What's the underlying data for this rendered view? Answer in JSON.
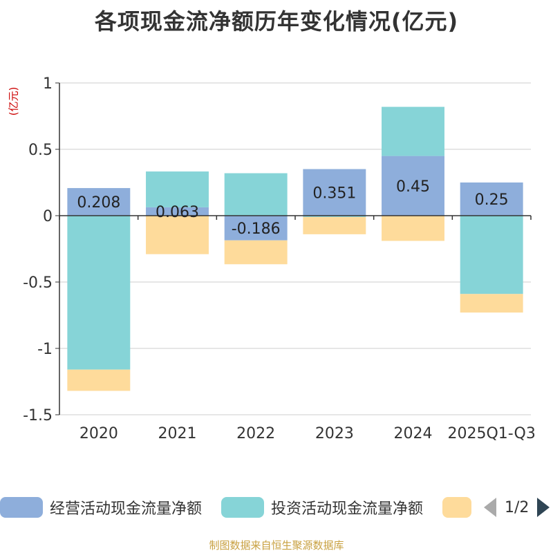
{
  "title": "各项现金流净额历年变化情况(亿元)",
  "unit_label": "(亿元)",
  "footer": "制图数据来自恒生聚源数据库",
  "pager": {
    "text": "1/2"
  },
  "chart_data": {
    "type": "bar",
    "stacked": true,
    "categories": [
      "2020",
      "2021",
      "2022",
      "2023",
      "2024",
      "2025Q1-Q3"
    ],
    "ylim": [
      -1.5,
      1
    ],
    "yticks": [
      1,
      0.5,
      0,
      -0.5,
      -1,
      -1.5
    ],
    "ytick_labels": [
      "1",
      "0.5",
      "0",
      "-0.5",
      "-1",
      "-1.5"
    ],
    "grid": true,
    "series": [
      {
        "name": "经营活动现金流量净额",
        "color": "#8eaedb",
        "values": [
          0.208,
          0.063,
          -0.186,
          0.351,
          0.45,
          0.25
        ],
        "labels": [
          "0.208",
          "0.063",
          "-0.186",
          "0.351",
          "0.45",
          "0.25"
        ]
      },
      {
        "name": "投资活动现金流量净额",
        "color": "#86d4d7",
        "values": [
          -1.16,
          0.27,
          0.32,
          -0.01,
          0.37,
          -0.59
        ]
      },
      {
        "name": "",
        "color": "#fedb9b",
        "values": [
          -0.16,
          -0.29,
          -0.18,
          -0.13,
          -0.19,
          -0.14
        ]
      }
    ]
  }
}
